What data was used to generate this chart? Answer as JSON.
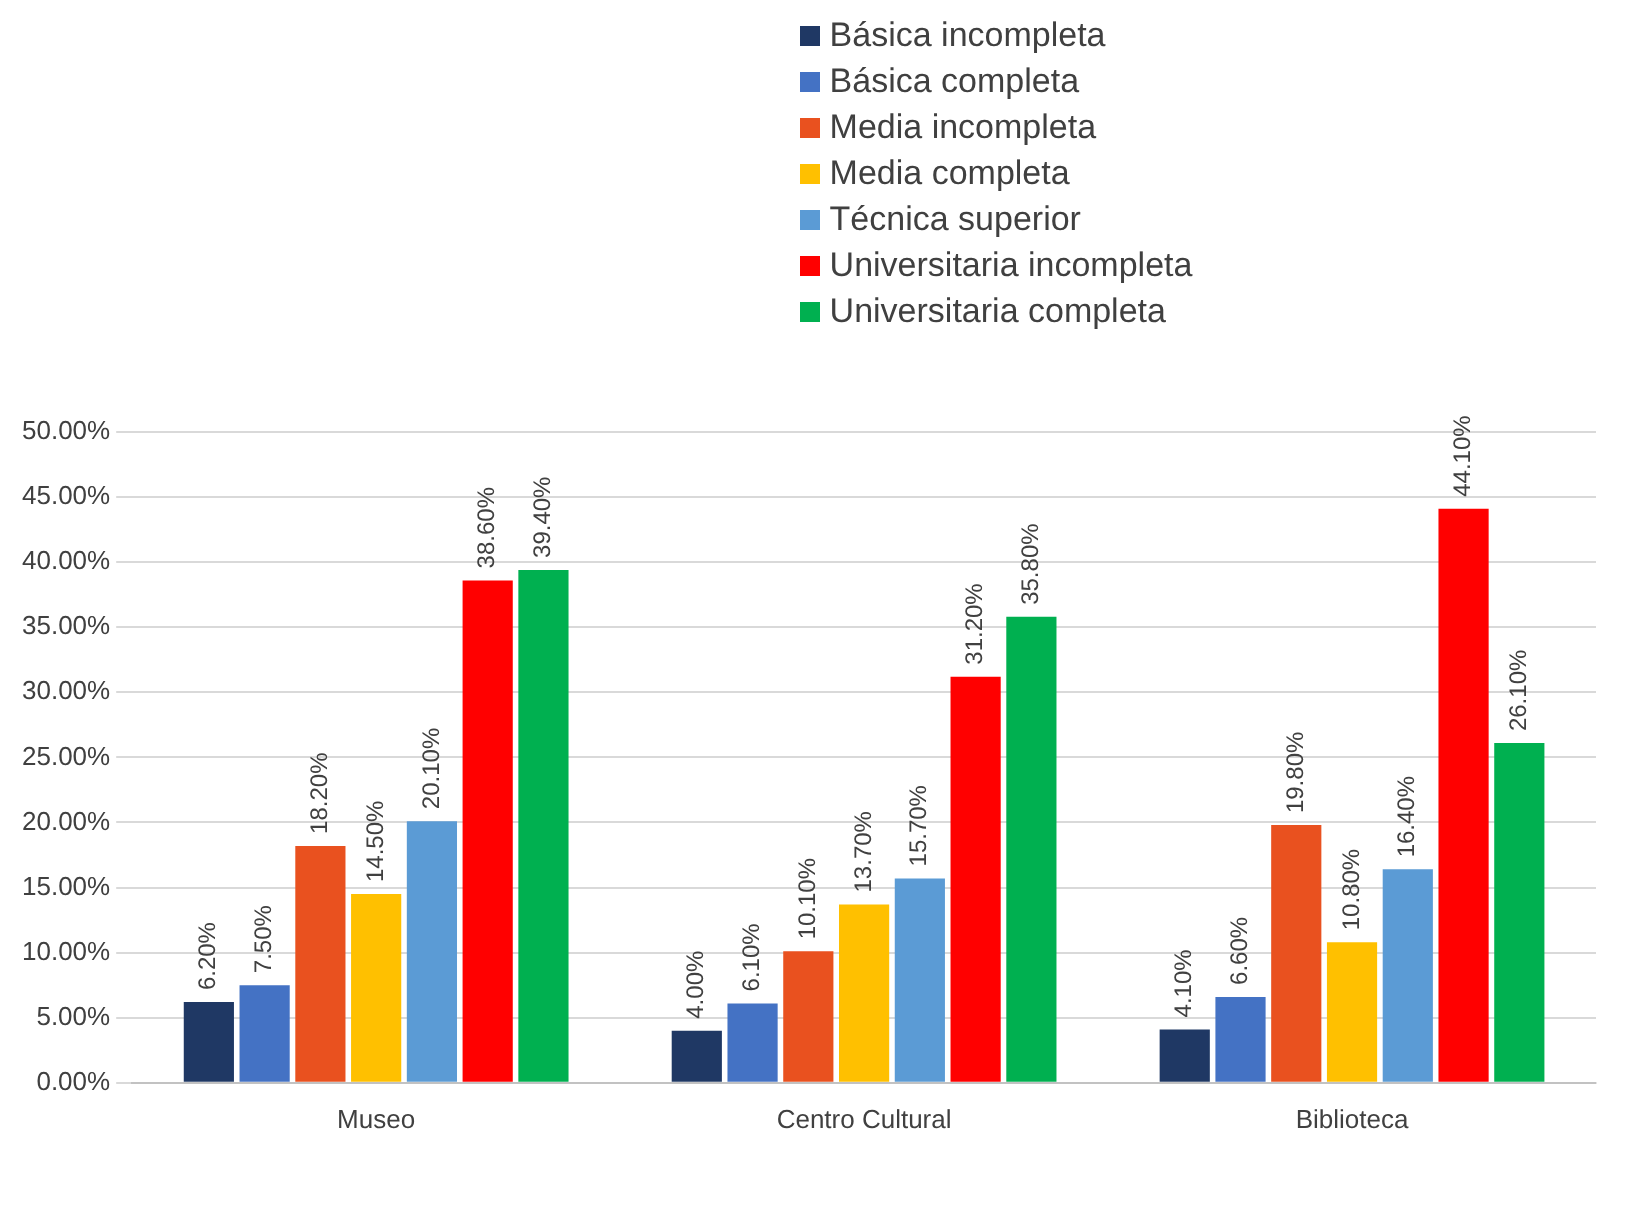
{
  "chart_data": {
    "type": "bar",
    "categories": [
      "Museo",
      "Centro Cultural",
      "Biblioteca"
    ],
    "series": [
      {
        "name": "Básica incompleta",
        "color": "#1f3864",
        "values": [
          6.2,
          4.0,
          4.1
        ],
        "value_labels": [
          "6.20%",
          "4.00%",
          "4.10%"
        ]
      },
      {
        "name": "Básica completa",
        "color": "#4472c4",
        "values": [
          7.5,
          6.1,
          6.6
        ],
        "value_labels": [
          "7.50%",
          "6.10%",
          "6.60%"
        ]
      },
      {
        "name": "Media incompleta",
        "color": "#e9511f",
        "values": [
          18.2,
          10.1,
          19.8
        ],
        "value_labels": [
          "18.20%",
          "10.10%",
          "19.80%"
        ]
      },
      {
        "name": "Media completa",
        "color": "#ffc000",
        "values": [
          14.5,
          13.7,
          10.8
        ],
        "value_labels": [
          "14.50%",
          "13.70%",
          "10.80%"
        ]
      },
      {
        "name": "Técnica superior",
        "color": "#5b9bd5",
        "values": [
          20.1,
          15.7,
          16.4
        ],
        "value_labels": [
          "20.10%",
          "15.70%",
          "16.40%"
        ]
      },
      {
        "name": "Universitaria incompleta",
        "color": "#ff0000",
        "values": [
          38.6,
          31.2,
          44.1
        ],
        "value_labels": [
          "38.60%",
          "31.20%",
          "44.10%"
        ]
      },
      {
        "name": "Universitaria completa",
        "color": "#00b050",
        "values": [
          39.4,
          35.8,
          26.1
        ],
        "value_labels": [
          "39.40%",
          "35.80%",
          "26.10%"
        ]
      }
    ],
    "ylim": [
      0,
      50
    ],
    "yticks": [
      {
        "value": 0,
        "label": "0.00%"
      },
      {
        "value": 5,
        "label": "5.00%"
      },
      {
        "value": 10,
        "label": "10.00%"
      },
      {
        "value": 15,
        "label": "15.00%"
      },
      {
        "value": 20,
        "label": "20.00%"
      },
      {
        "value": 25,
        "label": "25.00%"
      },
      {
        "value": 30,
        "label": "30.00%"
      },
      {
        "value": 35,
        "label": "35.00%"
      },
      {
        "value": 40,
        "label": "40.00%"
      },
      {
        "value": 45,
        "label": "45.00%"
      },
      {
        "value": 50,
        "label": "50.00%"
      }
    ],
    "grid": "y",
    "legend": "top"
  }
}
